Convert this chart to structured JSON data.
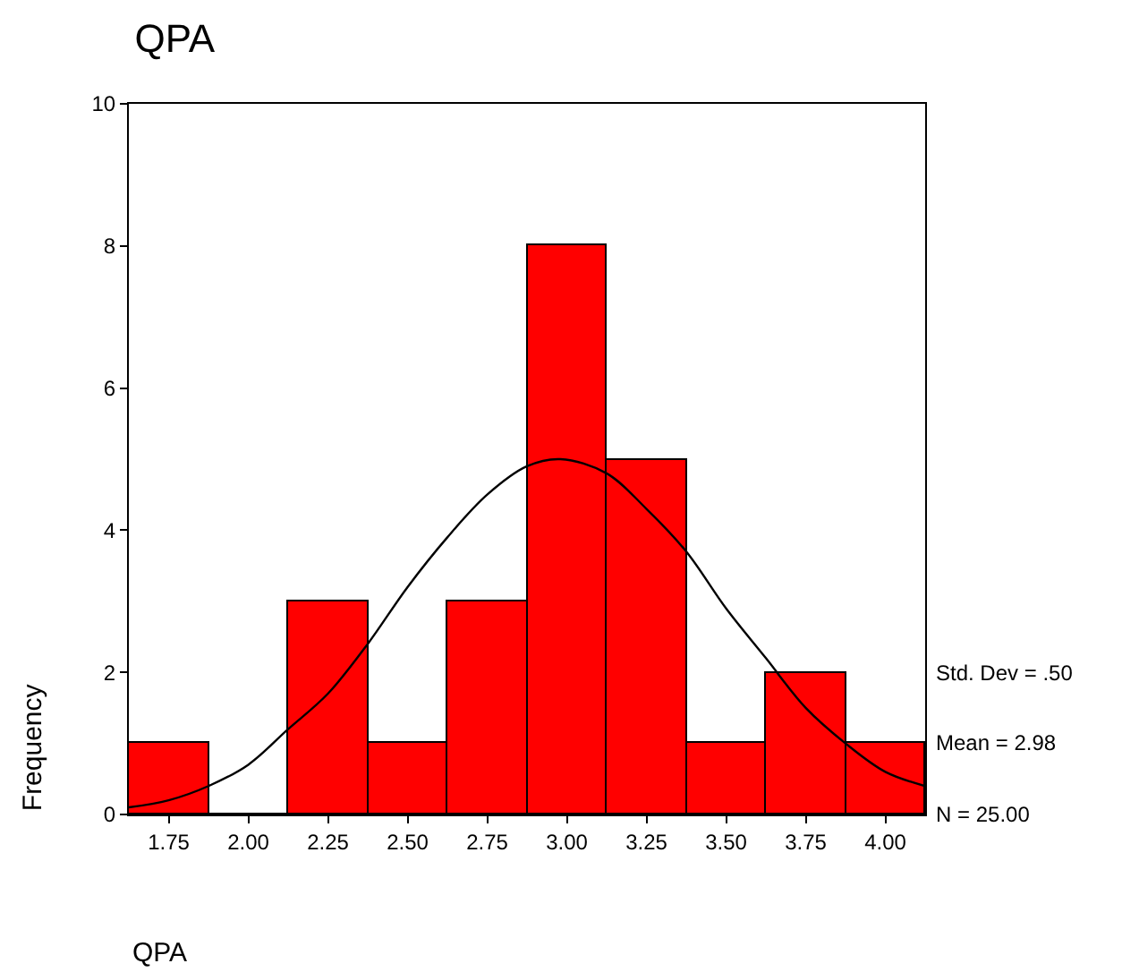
{
  "chart_data": {
    "type": "histogram",
    "title": "QPA",
    "xlabel": "QPA",
    "ylabel": "Frequency",
    "series": [
      {
        "bins": [
          1.625,
          1.875,
          2.125,
          2.375,
          2.625,
          2.875,
          3.125,
          3.375,
          3.625,
          3.875,
          4.125
        ],
        "values": [
          1,
          0,
          3,
          1,
          3,
          8,
          5,
          1,
          2,
          1
        ],
        "color": "#ff0000"
      },
      {
        "type": "line",
        "x": [
          1.625,
          1.75,
          1.875,
          2.0,
          2.125,
          2.25,
          2.375,
          2.5,
          2.625,
          2.75,
          2.875,
          2.98,
          3.125,
          3.25,
          3.375,
          3.5,
          3.625,
          3.75,
          3.875,
          4.0,
          4.125
        ],
        "values": [
          0.1,
          0.2,
          0.4,
          0.7,
          1.2,
          1.7,
          2.4,
          3.2,
          3.9,
          4.5,
          4.9,
          5.0,
          4.8,
          4.3,
          3.7,
          2.9,
          2.2,
          1.5,
          1.0,
          0.6,
          0.4
        ],
        "color": "#000000"
      }
    ],
    "xlim": [
      1.625,
      4.125
    ],
    "xticks": [
      1.75,
      {
        "value": 2,
        "label": "2.00"
      },
      2.25,
      {
        "value": 2.5,
        "label": "2.50"
      },
      2.75,
      {
        "value": 3,
        "label": "3.00"
      },
      3.25,
      {
        "value": 3.5,
        "label": "3.50"
      },
      3.75,
      {
        "value": 4,
        "label": "4.00"
      }
    ],
    "ylim": [
      0,
      10
    ],
    "yticks": [
      0,
      2,
      4,
      6,
      8,
      10
    ],
    "marker": "none",
    "line_style": "solid",
    "annotations": [
      "Std. Dev = .50",
      "Mean = 2.98",
      "N = 25.00"
    ]
  }
}
